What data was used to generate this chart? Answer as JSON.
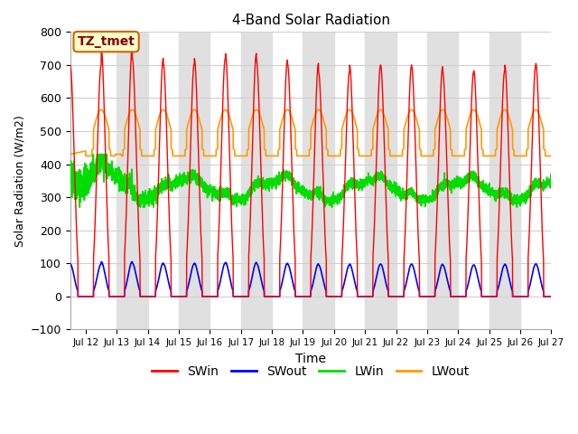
{
  "title": "4-Band Solar Radiation",
  "xlabel": "Time",
  "ylabel": "Solar Radiation (W/m2)",
  "ylim": [
    -100,
    800
  ],
  "xlim_days": [
    11.5,
    27.0
  ],
  "tick_days": [
    12,
    13,
    14,
    15,
    16,
    17,
    18,
    19,
    20,
    21,
    22,
    23,
    24,
    25,
    26,
    27
  ],
  "tick_labels": [
    "Jul 12",
    "Jul 13",
    "Jul 14",
    "Jul 15",
    "Jul 16",
    "Jul 17",
    "Jul 18",
    "Jul 19",
    "Jul 20",
    "Jul 21",
    "Jul 22",
    "Jul 23",
    "Jul 24",
    "Jul 25",
    "Jul 26",
    "Jul 27"
  ],
  "yticks": [
    -100,
    0,
    100,
    200,
    300,
    400,
    500,
    600,
    700,
    800
  ],
  "color_SWin": "#ff0000",
  "color_SWout": "#0000ff",
  "color_LWin": "#00dd00",
  "color_LWout": "#ff9900",
  "annotation_text": "TZ_tmet",
  "annotation_bg": "#ffffcc",
  "annotation_border": "#cc6600",
  "grid_color": "#d0d0d0",
  "band_color": "#e0e0e0",
  "background_color": "#ffffff",
  "legend_entries": [
    "SWin",
    "SWout",
    "LWin",
    "LWout"
  ],
  "sw_peak_vals": [
    700,
    750,
    720,
    705,
    720,
    735,
    715,
    705,
    680,
    700,
    700,
    695,
    680,
    683,
    700,
    705
  ],
  "lw_night_base": 425,
  "lw_day_peak_add": 150,
  "lwin_base": 340,
  "lwin_day_amp": 40,
  "swout_ratio": 0.14
}
